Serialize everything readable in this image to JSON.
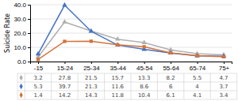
{
  "chart_data": {
    "type": "line",
    "y_label": "Suicide Rate",
    "categories": [
      "-15",
      "15-24",
      "25-34",
      "35-44",
      "45-54",
      "55-64",
      "65-74",
      "75+"
    ],
    "series": [
      {
        "color": "#b0b0b0",
        "marker": "triangle",
        "values": [
          3.2,
          27.8,
          21.5,
          15.7,
          13.3,
          8.2,
          5.5,
          4.7
        ]
      },
      {
        "color": "#4472c4",
        "marker": "triangle",
        "values": [
          5.3,
          39.7,
          21.3,
          11.6,
          8.6,
          6.0,
          4.0,
          3.7
        ]
      },
      {
        "color": "#d4733a",
        "marker": "square",
        "values": [
          1.4,
          14.2,
          14.3,
          11.8,
          10.4,
          6.1,
          4.1,
          3.4
        ]
      }
    ],
    "ylim": [
      0,
      40.0
    ],
    "yticks": [
      {
        "value": 0.0,
        "label": "0.0"
      },
      {
        "value": 10.0,
        "label": "10.0"
      },
      {
        "value": 20.0,
        "label": "20.0"
      },
      {
        "value": 30.0,
        "label": "30.0"
      },
      {
        "value": 40.0,
        "label": "40.0"
      }
    ],
    "grid": true,
    "data_labels": true
  }
}
